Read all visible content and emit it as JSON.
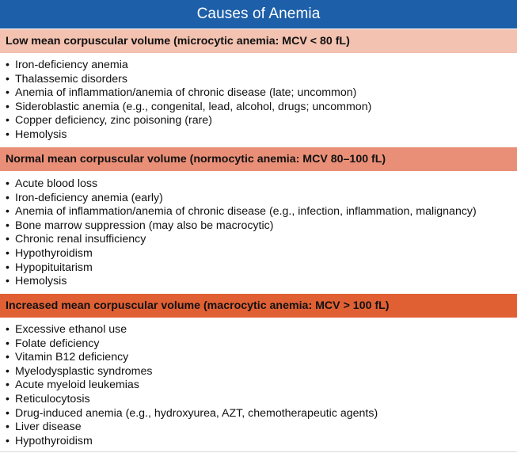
{
  "title": "Causes of Anemia",
  "sections": [
    {
      "heading": "Low mean corpuscular volume (microcytic anemia: MCV < 80 fL)",
      "items": [
        "Iron-deficiency anemia",
        "Thalassemic disorders",
        "Anemia of inflammation/anemia of chronic disease (late; uncommon)",
        "Sideroblastic anemia (e.g., congenital, lead, alcohol, drugs; uncommon)",
        "Copper deficiency, zinc poisoning (rare)",
        "Hemolysis"
      ]
    },
    {
      "heading": "Normal mean corpuscular volume (normocytic anemia: MCV 80–100 fL)",
      "items": [
        "Acute blood loss",
        "Iron-deficiency anemia (early)",
        "Anemia of inflammation/anemia of chronic disease (e.g., infection, inflammation, malignancy)",
        "Bone marrow suppression (may also be macrocytic)",
        "Chronic renal insufficiency",
        "Hypothyroidism",
        "Hypopituitarism",
        "Hemolysis"
      ]
    },
    {
      "heading": "Increased mean corpuscular volume (macrocytic anemia: MCV > 100 fL)",
      "items": [
        "Excessive ethanol use",
        "Folate deficiency",
        "Vitamin B12 deficiency",
        "Myelodysplastic syndromes",
        "Acute myeloid leukemias",
        "Reticulocytosis",
        "Drug-induced anemia (e.g., hydroxyurea, AZT, chemotherapeutic agents)",
        "Liver disease",
        "Hypothyroidism"
      ]
    }
  ],
  "bullet": "•",
  "colors": {
    "title_bg": "#1d5fa8",
    "section1_bg": "#f3c2b0",
    "section2_bg": "#ea8f77",
    "section3_bg": "#e06034"
  }
}
